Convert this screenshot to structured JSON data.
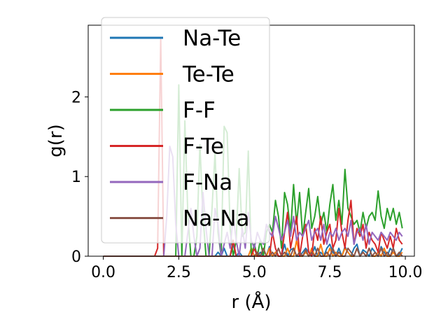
{
  "chart_data": {
    "type": "line",
    "xlabel": "r (Å)",
    "ylabel": "g(r)",
    "xlim": [
      -0.5,
      10.3
    ],
    "ylim": [
      0,
      2.9
    ],
    "xticks": [
      "0.0",
      "2.5",
      "5.0",
      "7.5",
      "10.0"
    ],
    "yticks": [
      "0",
      "1",
      "2"
    ],
    "grid": false,
    "legend_position": "upper-left",
    "x": [
      0.0,
      0.1,
      0.2,
      0.3,
      0.4,
      0.5,
      0.6,
      0.7,
      0.8,
      0.9,
      1.0,
      1.1,
      1.2,
      1.3,
      1.4,
      1.5,
      1.6,
      1.7,
      1.8,
      1.9,
      2.0,
      2.1,
      2.2,
      2.3,
      2.4,
      2.5,
      2.6,
      2.7,
      2.8,
      2.9,
      3.0,
      3.1,
      3.2,
      3.3,
      3.4,
      3.5,
      3.6,
      3.7,
      3.8,
      3.9,
      4.0,
      4.1,
      4.2,
      4.3,
      4.4,
      4.5,
      4.6,
      4.7,
      4.8,
      4.9,
      5.0,
      5.1,
      5.2,
      5.3,
      5.4,
      5.5,
      5.6,
      5.7,
      5.8,
      5.9,
      6.0,
      6.1,
      6.2,
      6.3,
      6.4,
      6.5,
      6.6,
      6.7,
      6.8,
      6.9,
      7.0,
      7.1,
      7.2,
      7.3,
      7.4,
      7.5,
      7.6,
      7.7,
      7.8,
      7.9,
      8.0,
      8.1,
      8.2,
      8.3,
      8.4,
      8.5,
      8.6,
      8.7,
      8.8,
      8.9,
      9.0,
      9.1,
      9.2,
      9.3,
      9.4,
      9.5,
      9.6,
      9.7,
      9.8,
      9.9
    ],
    "series": [
      {
        "name": "Na-Te",
        "color": "#1f77b4",
        "values": [
          0,
          0,
          0,
          0,
          0,
          0,
          0,
          0,
          0,
          0,
          0,
          0,
          0,
          0,
          0,
          0,
          0,
          0,
          0,
          0,
          0,
          0,
          0,
          0,
          0,
          0,
          0,
          0,
          0,
          0,
          0,
          0,
          0,
          0,
          0,
          0,
          0,
          0,
          0.05,
          0,
          0.1,
          0,
          0,
          0.15,
          0,
          0.05,
          0,
          0,
          0,
          0,
          0.1,
          0,
          0.05,
          0,
          0,
          0.12,
          0,
          0.05,
          0,
          0,
          0.15,
          0,
          0.08,
          0.1,
          0,
          0,
          0.05,
          0.1,
          0.05,
          0,
          0.12,
          0,
          0.05,
          0,
          0.1,
          0.15,
          0.05,
          0,
          0.1,
          0,
          0.12,
          0.05,
          0,
          0.1,
          0.15,
          0,
          0.08,
          0.05,
          0,
          0.1,
          0.05,
          0,
          0.12,
          0.05,
          0,
          0.1,
          0.05,
          0,
          0.02,
          0.1
        ]
      },
      {
        "name": "Te-Te",
        "color": "#ff7f0e",
        "values": [
          0,
          0,
          0,
          0,
          0,
          0,
          0,
          0,
          0,
          0,
          0,
          0,
          0,
          0,
          0,
          0,
          0,
          0,
          0,
          0,
          0,
          0,
          0,
          0,
          0,
          0,
          0,
          0,
          0,
          0,
          0,
          0,
          0,
          0,
          0,
          0,
          0,
          0,
          0,
          0,
          0,
          0,
          0,
          0,
          0,
          0,
          0,
          0,
          0,
          0.1,
          0,
          0,
          0,
          0,
          0,
          0.1,
          0,
          0.05,
          0,
          0,
          0,
          0.1,
          0,
          0,
          0.2,
          0,
          0,
          0.05,
          0,
          0.1,
          0,
          0,
          0.15,
          0,
          0,
          0.1,
          0,
          0.05,
          0,
          0,
          0.1,
          0.05,
          0,
          0,
          0.1,
          0,
          0.05,
          0,
          0.1,
          0,
          0,
          0.05,
          0,
          0.1,
          0,
          0,
          0.05,
          0,
          0,
          0.05
        ]
      },
      {
        "name": "F-F",
        "color": "#2ca02c",
        "values": [
          0,
          0,
          0,
          0,
          0,
          0,
          0,
          0,
          0,
          0,
          0,
          0,
          0,
          0,
          0,
          0,
          0,
          0,
          0,
          0,
          0,
          0,
          0,
          0,
          0,
          2.15,
          0,
          1.7,
          0.5,
          0,
          0,
          0.25,
          1.4,
          0.5,
          0,
          0,
          0.6,
          1.3,
          0.3,
          0,
          1.63,
          1.55,
          0.35,
          0,
          0.2,
          1.1,
          0.25,
          0.3,
          1.32,
          0,
          0.15,
          0,
          0.2,
          0,
          0.3,
          0.4,
          0.3,
          0.7,
          0.5,
          0.1,
          0.8,
          0.65,
          0.3,
          0.9,
          0.4,
          0.8,
          0.25,
          0.55,
          0.85,
          0.35,
          0.5,
          0.75,
          0.4,
          0.55,
          0.3,
          0.65,
          0.9,
          0.45,
          0.7,
          0.4,
          1.09,
          0.6,
          0.5,
          0.4,
          0.45,
          0.3,
          0.55,
          0.35,
          0.5,
          0.55,
          0.45,
          0.82,
          0.5,
          0.35,
          0.6,
          0.45,
          0.6,
          0.4,
          0.55,
          0.35
        ]
      },
      {
        "name": "F-Te",
        "color": "#d62728",
        "values": [
          0,
          0,
          0,
          0,
          0,
          0,
          0,
          0,
          0,
          0,
          0,
          0,
          0,
          0,
          0,
          0,
          0,
          0,
          0.1,
          2.72,
          0,
          0,
          0,
          0,
          0,
          0,
          0,
          0,
          0,
          0,
          0,
          0,
          0,
          0,
          0,
          0,
          0,
          0,
          0,
          0,
          0,
          0,
          0,
          0.2,
          0,
          0,
          0,
          0,
          0,
          0,
          0.1,
          0,
          0,
          0,
          0,
          0,
          0.3,
          0.1,
          0,
          0,
          0.3,
          0.55,
          0.1,
          0.3,
          0.5,
          0,
          0.25,
          0.4,
          0.05,
          0,
          0.35,
          0.2,
          0.5,
          0.15,
          0.3,
          0.4,
          0.1,
          0.2,
          0.6,
          0.3,
          0.1,
          0.45,
          0.7,
          0.15,
          0.35,
          0.25,
          0.4,
          0.1,
          0.3,
          0.2,
          0.15,
          0.05,
          0.3,
          0.2,
          0.1,
          0.25,
          0.1,
          0.35,
          0.2,
          0.15
        ]
      },
      {
        "name": "F-Na",
        "color": "#9467bd",
        "values": [
          0,
          0,
          0,
          0,
          0,
          0,
          0,
          0,
          0,
          0,
          0,
          0,
          0,
          0,
          0,
          0,
          0,
          0,
          0,
          0,
          0,
          0.5,
          1.38,
          1.25,
          0.4,
          0,
          0,
          0,
          0.3,
          0.6,
          0.25,
          0,
          0.1,
          0.8,
          0.35,
          0,
          0,
          0.6,
          0.4,
          0,
          0.15,
          0.3,
          0.1,
          0.5,
          0.2,
          0,
          0.35,
          0.1,
          0.55,
          0.2,
          0.1,
          0.3,
          0.2,
          0.15,
          0.4,
          0.3,
          0.25,
          0.5,
          0.35,
          0.2,
          0.3,
          0.45,
          0.25,
          0.5,
          0.2,
          0.3,
          0.25,
          0.35,
          0.45,
          0.2,
          0.3,
          0.35,
          0.2,
          0.4,
          0.15,
          0.3,
          0.25,
          0.35,
          0.2,
          0.3,
          0.35,
          0.25,
          0.45,
          0.15,
          0.3,
          0.35,
          0.2,
          0.4,
          0.15,
          0.3,
          0.25,
          0.2,
          0.3,
          0.25,
          0.2,
          0.3,
          0.25,
          0.2,
          0.3,
          0.25
        ]
      },
      {
        "name": "Na-Na",
        "color": "#8c564b",
        "values": [
          0,
          0,
          0,
          0,
          0,
          0,
          0,
          0,
          0,
          0,
          0,
          0,
          0,
          0,
          0,
          0,
          0,
          0,
          0,
          0,
          0,
          0,
          0,
          0,
          0,
          0,
          0,
          0,
          0,
          0,
          0,
          0,
          0,
          0,
          0,
          0,
          0,
          0,
          0,
          0,
          0,
          0,
          0,
          0,
          0,
          0,
          0,
          0,
          0,
          0,
          0,
          0.05,
          0,
          0.1,
          0,
          0,
          0.05,
          0,
          0.1,
          0,
          0.05,
          0,
          0,
          0.1,
          0,
          0.05,
          0,
          0.08,
          0,
          0.05,
          0,
          0.1,
          0,
          0,
          0.05,
          0,
          0.1,
          0,
          0.05,
          0,
          0,
          0.1,
          0.05,
          0,
          0.1,
          0,
          0.05,
          0,
          0.1,
          0,
          0.05,
          0,
          0.1,
          0,
          0.05,
          0,
          0.1,
          0,
          0.05,
          0
        ]
      }
    ]
  }
}
